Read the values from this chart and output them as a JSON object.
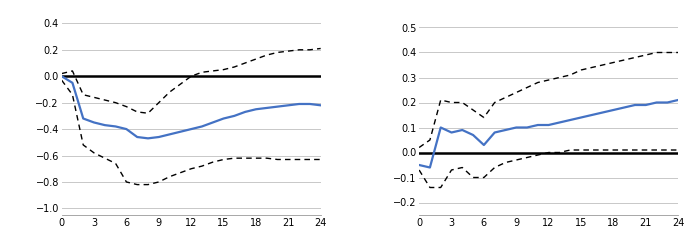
{
  "left": {
    "x": [
      0,
      1,
      2,
      3,
      4,
      5,
      6,
      7,
      8,
      9,
      10,
      11,
      12,
      13,
      14,
      15,
      16,
      17,
      18,
      19,
      20,
      21,
      22,
      23,
      24
    ],
    "blue": [
      0.0,
      -0.05,
      -0.32,
      -0.35,
      -0.37,
      -0.38,
      -0.4,
      -0.46,
      -0.47,
      -0.46,
      -0.44,
      -0.42,
      -0.4,
      -0.38,
      -0.35,
      -0.32,
      -0.3,
      -0.27,
      -0.25,
      -0.24,
      -0.23,
      -0.22,
      -0.21,
      -0.21,
      -0.22
    ],
    "upper": [
      0.02,
      0.04,
      -0.14,
      -0.16,
      -0.18,
      -0.2,
      -0.23,
      -0.27,
      -0.28,
      -0.2,
      -0.12,
      -0.06,
      0.0,
      0.03,
      0.04,
      0.05,
      0.07,
      0.1,
      0.13,
      0.16,
      0.18,
      0.19,
      0.2,
      0.2,
      0.21
    ],
    "lower": [
      -0.03,
      -0.14,
      -0.52,
      -0.58,
      -0.62,
      -0.66,
      -0.8,
      -0.82,
      -0.82,
      -0.8,
      -0.76,
      -0.73,
      -0.7,
      -0.68,
      -0.65,
      -0.63,
      -0.62,
      -0.62,
      -0.62,
      -0.62,
      -0.63,
      -0.63,
      -0.63,
      -0.63,
      -0.63
    ],
    "zero": [
      0,
      0,
      0,
      0,
      0,
      0,
      0,
      0,
      0,
      0,
      0,
      0,
      0,
      0,
      0,
      0,
      0,
      0,
      0,
      0,
      0,
      0,
      0,
      0,
      0
    ],
    "ylim": [
      -1.05,
      0.52
    ],
    "yticks": [
      -1.0,
      -0.8,
      -0.6,
      -0.4,
      -0.2,
      0.0,
      0.2,
      0.4
    ],
    "xticks": [
      0,
      3,
      6,
      9,
      12,
      15,
      18,
      21,
      24
    ]
  },
  "right": {
    "x": [
      0,
      1,
      2,
      3,
      4,
      5,
      6,
      7,
      8,
      9,
      10,
      11,
      12,
      13,
      14,
      15,
      16,
      17,
      18,
      19,
      20,
      21,
      22,
      23,
      24
    ],
    "blue": [
      -0.05,
      -0.06,
      0.1,
      0.08,
      0.09,
      0.07,
      0.03,
      0.08,
      0.09,
      0.1,
      0.1,
      0.11,
      0.11,
      0.12,
      0.13,
      0.14,
      0.15,
      0.16,
      0.17,
      0.18,
      0.19,
      0.19,
      0.2,
      0.2,
      0.21
    ],
    "upper": [
      0.02,
      0.05,
      0.21,
      0.2,
      0.2,
      0.17,
      0.14,
      0.2,
      0.22,
      0.24,
      0.26,
      0.28,
      0.29,
      0.3,
      0.31,
      0.33,
      0.34,
      0.35,
      0.36,
      0.37,
      0.38,
      0.39,
      0.4,
      0.4,
      0.4
    ],
    "lower": [
      -0.07,
      -0.14,
      -0.14,
      -0.07,
      -0.06,
      -0.1,
      -0.1,
      -0.06,
      -0.04,
      -0.03,
      -0.02,
      -0.01,
      0.0,
      0.0,
      0.01,
      0.01,
      0.01,
      0.01,
      0.01,
      0.01,
      0.01,
      0.01,
      0.01,
      0.01,
      0.01
    ],
    "zero": [
      0,
      0,
      0,
      0,
      0,
      0,
      0,
      0,
      0,
      0,
      0,
      0,
      0,
      0,
      0,
      0,
      0,
      0,
      0,
      0,
      0,
      0,
      0,
      0,
      0
    ],
    "ylim": [
      -0.25,
      0.58
    ],
    "yticks": [
      -0.2,
      -0.1,
      0.0,
      0.1,
      0.2,
      0.3,
      0.4,
      0.5
    ],
    "xticks": [
      0,
      3,
      6,
      9,
      12,
      15,
      18,
      21,
      24
    ]
  },
  "blue_color": "#4472C4",
  "black_color": "#000000",
  "dashed_color": "#000000",
  "bg_color": "#ffffff",
  "grid_color": "#c8c8c8"
}
